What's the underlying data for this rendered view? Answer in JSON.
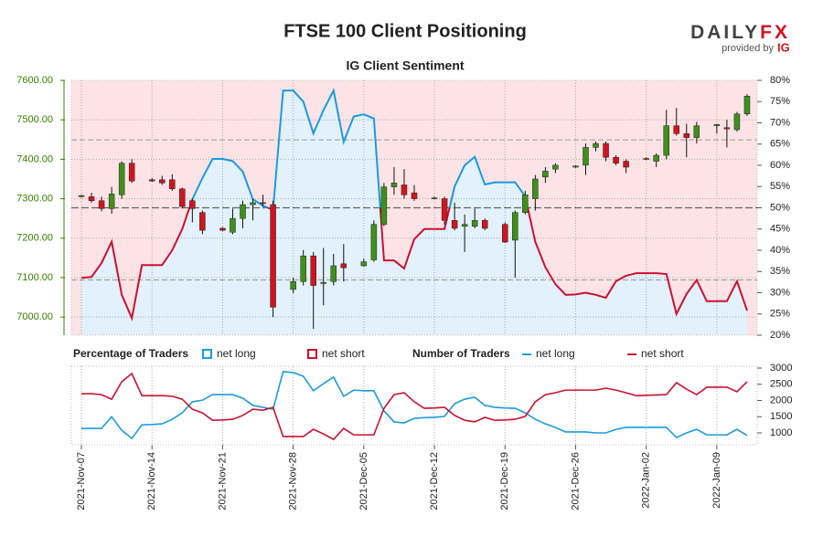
{
  "branding": {
    "logo_left": "DAILY",
    "logo_right": "FX",
    "provided_by": "provided by",
    "ig": "IG"
  },
  "chart_data": [
    {
      "type": "candlestick",
      "title": "FTSE 100 Client Positioning",
      "subtitle": "IG Client Sentiment",
      "xlim": [
        "2021-11-06",
        "2022-01-13"
      ],
      "ylim": [
        6954,
        7600
      ],
      "yticks": [
        {
          "value": 7000,
          "label": "7000.00"
        },
        {
          "value": 7100,
          "label": "7100.00"
        },
        {
          "value": 7200,
          "label": "7200.00"
        },
        {
          "value": 7300,
          "label": "7300.00"
        },
        {
          "value": 7400,
          "label": "7400.00"
        },
        {
          "value": 7500,
          "label": "7500.00"
        },
        {
          "value": 7600,
          "label": "7600.00"
        }
      ],
      "y2lim": [
        20,
        80
      ],
      "y2ticks": [
        {
          "value": 20,
          "label": "20%"
        },
        {
          "value": 25,
          "label": "25%"
        },
        {
          "value": 30,
          "label": "30%"
        },
        {
          "value": 35,
          "label": "35%"
        },
        {
          "value": 40,
          "label": "40%"
        },
        {
          "value": 45,
          "label": "45%"
        },
        {
          "value": 50,
          "label": "50%"
        },
        {
          "value": 55,
          "label": "55%"
        },
        {
          "value": 60,
          "label": "60%"
        },
        {
          "value": 65,
          "label": "65%"
        },
        {
          "value": 70,
          "label": "70%"
        },
        {
          "value": 75,
          "label": "75%"
        },
        {
          "value": 80,
          "label": "80%"
        }
      ],
      "grid": true,
      "up_color": "#3f8f1c",
      "down_color": "#d0141e",
      "majority_line": 50,
      "reference_lines": [
        33,
        66
      ],
      "legend": {
        "title": "Percentage of Traders",
        "items": [
          {
            "name": "net long",
            "color": "#1a9be0",
            "fill": "#e2f1fb"
          },
          {
            "name": "net short",
            "color": "#cc1030",
            "fill": "#fde3e6"
          }
        ]
      },
      "x": [
        "2021-11-07",
        "2021-11-08",
        "2021-11-09",
        "2021-11-10",
        "2021-11-11",
        "2021-11-12",
        "2021-11-14",
        "2021-11-15",
        "2021-11-16",
        "2021-11-17",
        "2021-11-18",
        "2021-11-19",
        "2021-11-21",
        "2021-11-22",
        "2021-11-23",
        "2021-11-24",
        "2021-11-25",
        "2021-11-26",
        "2021-11-28",
        "2021-11-29",
        "2021-11-30",
        "2021-12-01",
        "2021-12-02",
        "2021-12-03",
        "2021-12-05",
        "2021-12-06",
        "2021-12-07",
        "2021-12-08",
        "2021-12-09",
        "2021-12-10",
        "2021-12-12",
        "2021-12-13",
        "2021-12-14",
        "2021-12-15",
        "2021-12-16",
        "2021-12-17",
        "2021-12-19",
        "2021-12-20",
        "2021-12-21",
        "2021-12-22",
        "2021-12-23",
        "2021-12-24",
        "2021-12-26",
        "2021-12-27",
        "2021-12-28",
        "2021-12-29",
        "2021-12-30",
        "2021-12-31",
        "2022-01-02",
        "2022-01-03",
        "2022-01-04",
        "2022-01-05",
        "2022-01-06",
        "2022-01-07",
        "2022-01-09",
        "2022-01-10",
        "2022-01-11",
        "2022-01-12"
      ],
      "open": [
        7305,
        7305,
        7295,
        7275,
        7310,
        7390,
        7348,
        7348,
        7348,
        7325,
        7295,
        7265,
        7225,
        7215,
        7250,
        7285,
        7290,
        7285,
        7070,
        7090,
        7155,
        7085,
        7090,
        7135,
        7130,
        7145,
        7235,
        7330,
        7335,
        7315,
        7300,
        7300,
        7245,
        7230,
        7230,
        7245,
        7235,
        7195,
        7265,
        7300,
        7355,
        7375,
        7380,
        7385,
        7430,
        7440,
        7405,
        7395,
        7402,
        7395,
        7410,
        7485,
        7465,
        7455,
        7485,
        7480,
        7475,
        7515
      ],
      "high": [
        7310,
        7315,
        7305,
        7330,
        7395,
        7400,
        7352,
        7358,
        7362,
        7328,
        7300,
        7270,
        7228,
        7275,
        7295,
        7300,
        7310,
        7295,
        7100,
        7170,
        7165,
        7175,
        7160,
        7185,
        7148,
        7245,
        7340,
        7380,
        7375,
        7335,
        7305,
        7305,
        7290,
        7260,
        7275,
        7250,
        7240,
        7270,
        7320,
        7360,
        7380,
        7390,
        7385,
        7440,
        7445,
        7445,
        7410,
        7400,
        7405,
        7415,
        7525,
        7530,
        7490,
        7495,
        7490,
        7500,
        7520,
        7565
      ],
      "low": [
        7303,
        7290,
        7268,
        7262,
        7300,
        7340,
        7343,
        7335,
        7320,
        7275,
        7240,
        7210,
        7218,
        7210,
        7225,
        7245,
        7280,
        7000,
        7060,
        7080,
        6970,
        7030,
        7080,
        7090,
        7128,
        7140,
        7230,
        7310,
        7300,
        7295,
        7298,
        7235,
        7220,
        7165,
        7225,
        7220,
        7188,
        7100,
        7260,
        7270,
        7340,
        7365,
        7378,
        7360,
        7420,
        7395,
        7385,
        7365,
        7398,
        7380,
        7400,
        7460,
        7405,
        7440,
        7465,
        7430,
        7470,
        7510
      ],
      "close": [
        7308,
        7295,
        7275,
        7312,
        7390,
        7345,
        7345,
        7340,
        7325,
        7280,
        7275,
        7220,
        7220,
        7250,
        7285,
        7290,
        7288,
        7025,
        7090,
        7155,
        7080,
        7088,
        7130,
        7125,
        7140,
        7235,
        7330,
        7340,
        7310,
        7300,
        7302,
        7245,
        7225,
        7235,
        7245,
        7225,
        7190,
        7265,
        7310,
        7350,
        7370,
        7385,
        7383,
        7430,
        7440,
        7405,
        7390,
        7380,
        7400,
        7410,
        7485,
        7465,
        7455,
        7485,
        7488,
        7477,
        7515,
        7560
      ],
      "sentiment": {
        "x": [
          "2021-11-07",
          "2021-11-08",
          "2021-11-09",
          "2021-11-10",
          "2021-11-11",
          "2021-11-12",
          "2021-11-13",
          "2021-11-14",
          "2021-11-15",
          "2021-11-16",
          "2021-11-17",
          "2021-11-18",
          "2021-11-19",
          "2021-11-20",
          "2021-11-21",
          "2021-11-22",
          "2021-11-23",
          "2021-11-24",
          "2021-11-25",
          "2021-11-26",
          "2021-11-27",
          "2021-11-28",
          "2021-11-29",
          "2021-11-30",
          "2021-12-01",
          "2021-12-02",
          "2021-12-03",
          "2021-12-04",
          "2021-12-05",
          "2021-12-06",
          "2021-12-07",
          "2021-12-08",
          "2021-12-09",
          "2021-12-10",
          "2021-12-11",
          "2021-12-12",
          "2021-12-13",
          "2021-12-14",
          "2021-12-15",
          "2021-12-16",
          "2021-12-17",
          "2021-12-18",
          "2021-12-19",
          "2021-12-20",
          "2021-12-21",
          "2021-12-22",
          "2021-12-23",
          "2021-12-24",
          "2021-12-25",
          "2021-12-26",
          "2021-12-27",
          "2021-12-28",
          "2021-12-29",
          "2021-12-30",
          "2021-12-31",
          "2022-01-01",
          "2022-01-02",
          "2022-01-03",
          "2022-01-04",
          "2022-01-05",
          "2022-01-06",
          "2022-01-07",
          "2022-01-08",
          "2022-01-09",
          "2022-01-10",
          "2022-01-11",
          "2022-01-12"
        ],
        "values": [
          33.5,
          33.7,
          37,
          42,
          29.5,
          24,
          36.5,
          36.5,
          36.5,
          40,
          45,
          52,
          57,
          61.5,
          61.5,
          61,
          58.5,
          52,
          50.5,
          49.5,
          77.6,
          77.6,
          75,
          67.5,
          73,
          77.6,
          65.5,
          71.5,
          72,
          71,
          37.6,
          37.6,
          35.7,
          42.6,
          45,
          45,
          45,
          55,
          60,
          62,
          55.5,
          56,
          56,
          56,
          52.7,
          42,
          36,
          32,
          29.5,
          29.6,
          30,
          29.5,
          28.8,
          32.7,
          34,
          34.6,
          34.6,
          34.6,
          34.4,
          25,
          29.7,
          33,
          28,
          28,
          28,
          32.7,
          25.8
        ]
      }
    },
    {
      "type": "line",
      "legend_title": "Number of Traders",
      "xlim": [
        "2021-11-06",
        "2022-01-13"
      ],
      "xticks": [
        {
          "value": "2021-11-07",
          "label": "2021-Nov-07"
        },
        {
          "value": "2021-11-14",
          "label": "2021-Nov-14"
        },
        {
          "value": "2021-11-21",
          "label": "2021-Nov-21"
        },
        {
          "value": "2021-11-28",
          "label": "2021-Nov-28"
        },
        {
          "value": "2021-12-05",
          "label": "2021-Dec-05"
        },
        {
          "value": "2021-12-12",
          "label": "2021-Dec-12"
        },
        {
          "value": "2021-12-19",
          "label": "2021-Dec-19"
        },
        {
          "value": "2021-12-26",
          "label": "2021-Dec-26"
        },
        {
          "value": "2022-01-02",
          "label": "2022-Jan-02"
        },
        {
          "value": "2022-01-09",
          "label": "2022-Jan-09"
        }
      ],
      "ylim": [
        634,
        3056
      ],
      "yticks": [
        1000,
        1500,
        2000,
        2500,
        3000
      ],
      "x": [
        "2021-11-07",
        "2021-11-08",
        "2021-11-09",
        "2021-11-10",
        "2021-11-11",
        "2021-11-12",
        "2021-11-13",
        "2021-11-14",
        "2021-11-15",
        "2021-11-16",
        "2021-11-17",
        "2021-11-18",
        "2021-11-19",
        "2021-11-20",
        "2021-11-21",
        "2021-11-22",
        "2021-11-23",
        "2021-11-24",
        "2021-11-25",
        "2021-11-26",
        "2021-11-27",
        "2021-11-28",
        "2021-11-29",
        "2021-11-30",
        "2021-12-01",
        "2021-12-02",
        "2021-12-03",
        "2021-12-04",
        "2021-12-05",
        "2021-12-06",
        "2021-12-07",
        "2021-12-08",
        "2021-12-09",
        "2021-12-10",
        "2021-12-11",
        "2021-12-12",
        "2021-12-13",
        "2021-12-14",
        "2021-12-15",
        "2021-12-16",
        "2021-12-17",
        "2021-12-18",
        "2021-12-19",
        "2021-12-20",
        "2021-12-21",
        "2021-12-22",
        "2021-12-23",
        "2021-12-24",
        "2021-12-25",
        "2021-12-26",
        "2021-12-27",
        "2021-12-28",
        "2021-12-29",
        "2021-12-30",
        "2021-12-31",
        "2022-01-01",
        "2022-01-02",
        "2022-01-03",
        "2022-01-04",
        "2022-01-05",
        "2022-01-06",
        "2022-01-07",
        "2022-01-08",
        "2022-01-09",
        "2022-01-10",
        "2022-01-11",
        "2022-01-12"
      ],
      "series": [
        {
          "name": "net long",
          "color": "#1a9be0",
          "values": [
            1140,
            1140,
            1140,
            1500,
            1080,
            830,
            1250,
            1260,
            1280,
            1420,
            1620,
            1960,
            2010,
            2180,
            2180,
            2180,
            2070,
            1850,
            1790,
            1730,
            2890,
            2860,
            2750,
            2300,
            2520,
            2720,
            2130,
            2320,
            2300,
            2300,
            1680,
            1340,
            1310,
            1450,
            1470,
            1480,
            1510,
            1900,
            2040,
            2100,
            1850,
            1790,
            1770,
            1760,
            1620,
            1420,
            1280,
            1170,
            1030,
            1030,
            1030,
            1000,
            1000,
            1110,
            1170,
            1170,
            1170,
            1170,
            1170,
            860,
            1000,
            1110,
            940,
            940,
            940,
            1110,
            920
          ]
        },
        {
          "name": "net short",
          "color": "#cc1030",
          "values": [
            2210,
            2210,
            2180,
            2040,
            2580,
            2830,
            2150,
            2150,
            2150,
            2130,
            2040,
            1730,
            1620,
            1390,
            1400,
            1420,
            1540,
            1730,
            1700,
            1790,
            890,
            890,
            890,
            1110,
            970,
            800,
            1140,
            940,
            940,
            940,
            1760,
            2180,
            2240,
            1960,
            1760,
            1770,
            1790,
            1540,
            1390,
            1340,
            1480,
            1390,
            1400,
            1420,
            1510,
            1960,
            2180,
            2240,
            2320,
            2320,
            2320,
            2320,
            2380,
            2320,
            2240,
            2150,
            2160,
            2170,
            2180,
            2550,
            2350,
            2180,
            2410,
            2410,
            2410,
            2270,
            2580
          ]
        }
      ]
    }
  ]
}
